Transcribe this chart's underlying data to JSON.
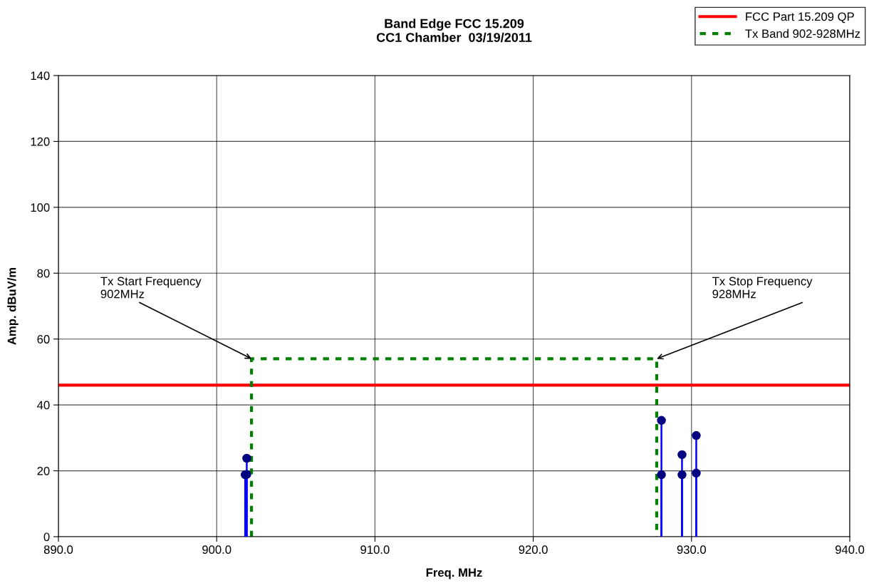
{
  "chart_data": {
    "type": "lollipop",
    "title": "Band Edge FCC 15.209\nCC1 Chamber  03/19/2011",
    "xlabel": "Freq. MHz",
    "ylabel": "Amp. dBuV/m",
    "xlim": [
      890,
      940
    ],
    "xticks": [
      {
        "value": 890,
        "label": "890.0"
      },
      {
        "value": 900,
        "label": "900.0"
      },
      {
        "value": 910,
        "label": "910.0"
      },
      {
        "value": 920,
        "label": "920.0"
      },
      {
        "value": 930,
        "label": "930.0"
      },
      {
        "value": 940,
        "label": "940.0"
      }
    ],
    "ylim": [
      0,
      140
    ],
    "yticks": [
      0,
      20,
      40,
      60,
      80,
      100,
      120,
      140
    ],
    "grid": true,
    "legend": "top right",
    "series": [
      {
        "color": "#000080",
        "marker": "circle",
        "x": [
          901.8,
          901.9,
          901.9,
          928.1,
          928.1,
          929.4,
          929.4,
          930.3,
          930.3
        ],
        "values": [
          18.8,
          18.9,
          23.8,
          35.3,
          18.8,
          24.9,
          18.8,
          30.7,
          19.3
        ]
      },
      {
        "type": "line",
        "name": "FCC Part 15.209 QP",
        "color": "#ff0000",
        "line_style": "solid",
        "x": [
          890,
          940
        ],
        "values": [
          46,
          46
        ]
      },
      {
        "type": "line",
        "name": "Tx Band 902-928MHz",
        "color": "#008000",
        "line_style": "dashed",
        "x": [
          902.2,
          902.2,
          927.8,
          927.8
        ],
        "values": [
          0,
          54,
          54,
          0
        ]
      }
    ],
    "annotations": [
      {
        "text": "Tx Start Frequency\n902MHz",
        "x": 902.2,
        "y": 54
      },
      {
        "text": "Tx Stop Frequency\n928MHz",
        "x": 927.8,
        "y": 54
      }
    ]
  }
}
